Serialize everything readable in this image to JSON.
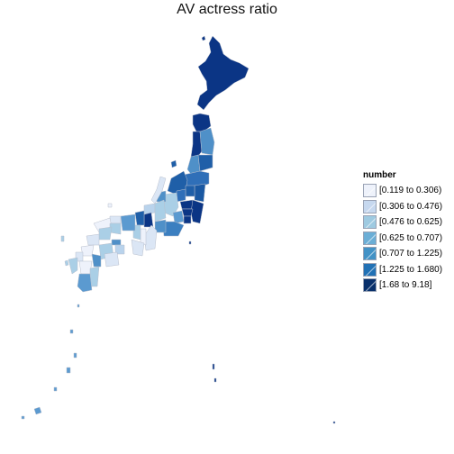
{
  "title": "AV actress ratio",
  "legend": {
    "title": "number",
    "items": [
      {
        "label": "[0.119 to 0.306)",
        "color": "#eef2fb"
      },
      {
        "label": "[0.306 to 0.476)",
        "color": "#c6d8ef"
      },
      {
        "label": "[0.476 to 0.625)",
        "color": "#9ecae1"
      },
      {
        "label": "[0.625 to 0.707)",
        "color": "#6baed6"
      },
      {
        "label": "[0.707 to 1.225)",
        "color": "#4292c6"
      },
      {
        "label": "[1.225 to 1.680)",
        "color": "#2171b5"
      },
      {
        "label": "[1.68 to 9.18]",
        "color": "#08306b"
      }
    ]
  }
}
